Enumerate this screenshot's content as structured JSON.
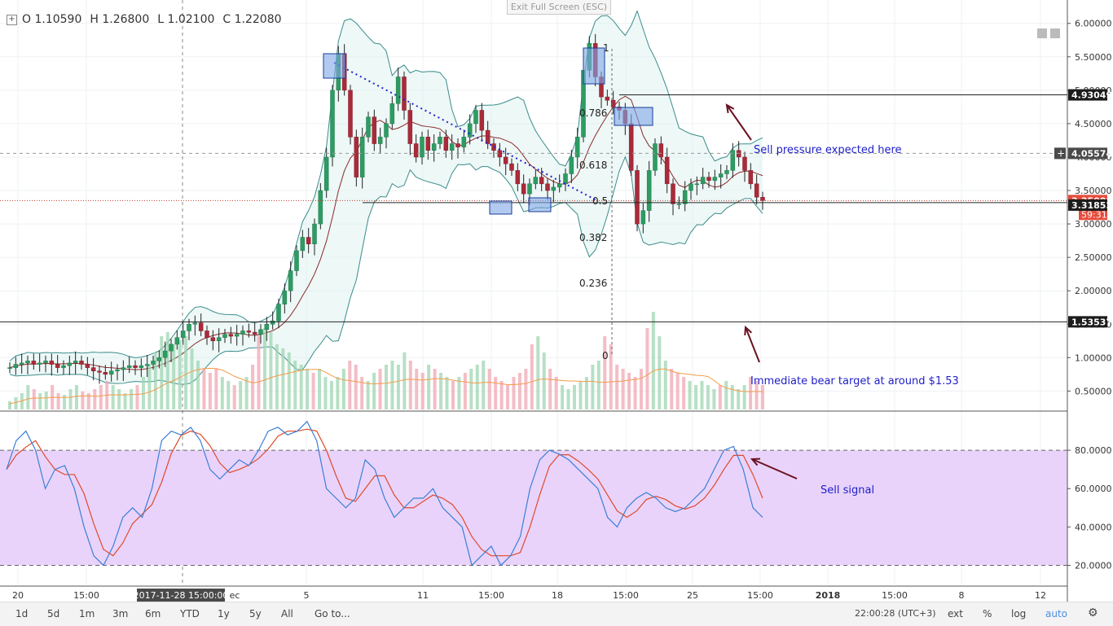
{
  "toolbar": {
    "ohlc": {
      "open": "O 1.10590",
      "high": "H 1.26800",
      "low": "L 1.02100",
      "close": "C 1.22080"
    },
    "exit_fullscreen": "Exit Full Screen (ESC)"
  },
  "price_axis": {
    "ticks": [
      "6.00000",
      "5.50000",
      "5.00000",
      "4.50000",
      "4.00000",
      "3.50000",
      "3.00000",
      "2.50000",
      "2.00000",
      "1.50000",
      "1.00000",
      "0.50000"
    ],
    "labels": {
      "resistance": "4.93049",
      "crosshair": "4.05574",
      "current": "3.35000",
      "countdown": "59:31",
      "support_mid": "3.31852",
      "target": "1.53537"
    }
  },
  "fib_levels": {
    "l1": "1",
    "l0786": "0.786",
    "l0618": "0.618",
    "l05": "0.5",
    "l0382": "0.382",
    "l0236": "0.236",
    "l0": "0"
  },
  "annotations": {
    "sell_pressure": "Sell pressure expected here",
    "bear_target": "Immediate bear target at around $1.53",
    "sell_signal": "Sell signal"
  },
  "oscillator_axis": {
    "ticks": [
      "80.0000",
      "60.0000",
      "40.0000",
      "20.0000"
    ]
  },
  "time_axis": {
    "ticks": [
      "20",
      "15:00",
      "2017-11-28 15:00:00",
      "ec",
      "5",
      "11",
      "15:00",
      "18",
      "15:00",
      "25",
      "15:00",
      "2018",
      "15:00",
      "8",
      "12"
    ]
  },
  "bottom_bar": {
    "timeframes": [
      "1d",
      "5d",
      "1m",
      "3m",
      "6m",
      "YTD",
      "1y",
      "5y",
      "All"
    ],
    "goto": "Go to...",
    "timestamp": "22:00:28 (UTC+3)",
    "options": {
      "ext": "ext",
      "pct": "%",
      "log": "log",
      "auto": "auto"
    }
  },
  "chart_data": [
    {
      "type": "candlestick",
      "ylim": [
        0.2,
        6.35
      ],
      "grid": true,
      "series": [
        {
          "name": "Price",
          "values": [
            0.85,
            0.9,
            0.92,
            0.95,
            0.9,
            0.92,
            0.95,
            0.9,
            0.85,
            0.88,
            0.92,
            0.95,
            0.9,
            0.85,
            0.8,
            0.78,
            0.75,
            0.8,
            0.82,
            0.85,
            0.88,
            0.85,
            0.88,
            0.9,
            0.95,
            1.0,
            1.1,
            1.2,
            1.3,
            1.4,
            1.5,
            1.52,
            1.4,
            1.3,
            1.25,
            1.3,
            1.35,
            1.32,
            1.35,
            1.4,
            1.38,
            1.35,
            1.42,
            1.5,
            1.55,
            1.8,
            2.0,
            2.3,
            2.6,
            2.8,
            2.7,
            3.0,
            3.5,
            4.0,
            5.0,
            5.55,
            5.0,
            4.3,
            3.7,
            4.3,
            4.6,
            4.2,
            4.3,
            4.5,
            4.8,
            5.2,
            4.7,
            4.2,
            4.0,
            4.3,
            4.1,
            4.2,
            4.3,
            4.1,
            4.2,
            4.15,
            4.3,
            4.5,
            4.7,
            4.4,
            4.2,
            4.1,
            4.0,
            3.9,
            3.8,
            3.6,
            3.45,
            3.6,
            3.7,
            3.6,
            3.5,
            3.55,
            3.6,
            3.75,
            4.0,
            4.3,
            5.3,
            5.7,
            5.2,
            4.9,
            4.85,
            4.75,
            4.7,
            4.5,
            3.8,
            3.0,
            3.2,
            3.8,
            4.2,
            4.0,
            3.6,
            3.3,
            3.3,
            3.5,
            3.6,
            3.6,
            3.7,
            3.65,
            3.7,
            3.75,
            3.8,
            4.1,
            4.0,
            3.8,
            3.6,
            3.4,
            3.35
          ]
        }
      ]
    },
    {
      "type": "bar",
      "series": [
        {
          "name": "Volume",
          "values": [
            0.1,
            0.15,
            0.2,
            0.3,
            0.25,
            0.2,
            0.22,
            0.3,
            0.2,
            0.18,
            0.25,
            0.3,
            0.22,
            0.2,
            0.25,
            0.3,
            0.35,
            0.3,
            0.25,
            0.2,
            0.25,
            0.3,
            0.4,
            0.55,
            0.7,
            0.9,
            0.95,
            0.8,
            0.85,
            0.9,
            0.75,
            0.6,
            0.5,
            0.45,
            0.5,
            0.4,
            0.35,
            0.3,
            0.35,
            0.4,
            0.55,
            0.9,
            1.0,
            0.95,
            0.8,
            0.75,
            0.7,
            0.6,
            0.55,
            0.5,
            0.45,
            0.5,
            0.4,
            0.35,
            0.4,
            0.5,
            0.6,
            0.55,
            0.4,
            0.35,
            0.45,
            0.5,
            0.55,
            0.6,
            0.55,
            0.7,
            0.6,
            0.5,
            0.45,
            0.55,
            0.5,
            0.45,
            0.4,
            0.35,
            0.4,
            0.45,
            0.5,
            0.55,
            0.6,
            0.5,
            0.4,
            0.35,
            0.3,
            0.4,
            0.45,
            0.5,
            0.8,
            0.9,
            0.7,
            0.5,
            0.4,
            0.3,
            0.25,
            0.3,
            0.35,
            0.4,
            0.55,
            0.6,
            0.9,
            0.8,
            0.55,
            0.5,
            0.45,
            0.4,
            0.5,
            1.0,
            1.2,
            0.9,
            0.6,
            0.5,
            0.45,
            0.4,
            0.35,
            0.3,
            0.35,
            0.3,
            0.25,
            0.3,
            0.35,
            0.3,
            0.25,
            0.3,
            0.4,
            0.35,
            0.3
          ]
        }
      ]
    },
    {
      "type": "line",
      "ylim": [
        10,
        100
      ],
      "series": [
        {
          "name": "%K",
          "values": [
            70,
            85,
            90,
            80,
            60,
            70,
            72,
            60,
            40,
            25,
            20,
            30,
            45,
            50,
            45,
            60,
            85,
            90,
            88,
            92,
            85,
            70,
            65,
            70,
            75,
            72,
            80,
            90,
            92,
            88,
            90,
            95,
            85,
            60,
            55,
            50,
            55,
            75,
            70,
            55,
            45,
            50,
            55,
            55,
            60,
            50,
            45,
            40,
            20,
            25,
            30,
            20,
            25,
            35,
            60,
            75,
            80,
            78,
            75,
            70,
            65,
            60,
            45,
            40,
            50,
            55,
            58,
            55,
            50,
            48,
            50,
            55,
            60,
            70,
            80,
            82,
            70,
            50,
            45
          ]
        }
      ]
    }
  ]
}
